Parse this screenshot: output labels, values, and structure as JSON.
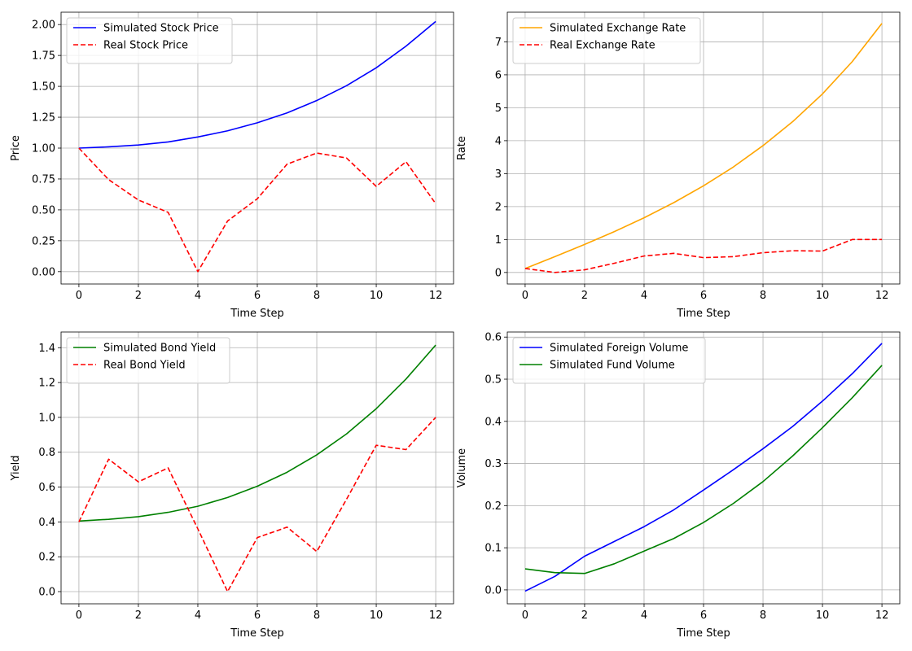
{
  "chart_data": [
    {
      "type": "line",
      "xlabel": "Time Step",
      "ylabel": "Price",
      "x": [
        0,
        1,
        2,
        3,
        4,
        5,
        6,
        7,
        8,
        9,
        10,
        11,
        12
      ],
      "xlim": [
        -0.6,
        12.6
      ],
      "ylim": [
        -0.1,
        2.1
      ],
      "xticks": [
        0,
        2,
        4,
        6,
        8,
        10,
        12
      ],
      "xtick_labels": [
        "0",
        "2",
        "4",
        "6",
        "8",
        "10",
        "12"
      ],
      "yticks": [
        0,
        0.25,
        0.5,
        0.75,
        1.0,
        1.25,
        1.5,
        1.75,
        2.0
      ],
      "ytick_labels": [
        "0.00",
        "0.25",
        "0.50",
        "0.75",
        "1.00",
        "1.25",
        "1.50",
        "1.75",
        "2.00"
      ],
      "grid": true,
      "legend_position": "upper-left",
      "series": [
        {
          "name": "Simulated Stock Price",
          "color": "#0000ff",
          "dash": "solid",
          "values": [
            1.0,
            1.01,
            1.025,
            1.05,
            1.09,
            1.14,
            1.205,
            1.285,
            1.385,
            1.505,
            1.65,
            1.825,
            2.025
          ]
        },
        {
          "name": "Real Stock Price",
          "color": "#ff0000",
          "dash": "dashed",
          "values": [
            1.0,
            0.745,
            0.58,
            0.48,
            0.0,
            0.41,
            0.59,
            0.87,
            0.96,
            0.92,
            0.69,
            0.89,
            0.55
          ]
        }
      ]
    },
    {
      "type": "line",
      "xlabel": "Time Step",
      "ylabel": "Rate",
      "x": [
        0,
        1,
        2,
        3,
        4,
        5,
        6,
        7,
        8,
        9,
        10,
        11,
        12
      ],
      "xlim": [
        -0.6,
        12.6
      ],
      "ylim": [
        -0.35,
        7.9
      ],
      "xticks": [
        0,
        2,
        4,
        6,
        8,
        10,
        12
      ],
      "xtick_labels": [
        "0",
        "2",
        "4",
        "6",
        "8",
        "10",
        "12"
      ],
      "yticks": [
        0,
        1,
        2,
        3,
        4,
        5,
        6,
        7
      ],
      "ytick_labels": [
        "0",
        "1",
        "2",
        "3",
        "4",
        "5",
        "6",
        "7"
      ],
      "grid": true,
      "legend_position": "upper-left",
      "series": [
        {
          "name": "Simulated Exchange Rate",
          "color": "#ffa500",
          "dash": "solid",
          "values": [
            0.12,
            0.48,
            0.85,
            1.24,
            1.66,
            2.12,
            2.63,
            3.2,
            3.85,
            4.58,
            5.42,
            6.4,
            7.56
          ]
        },
        {
          "name": "Real Exchange Rate",
          "color": "#ff0000",
          "dash": "dashed",
          "values": [
            0.12,
            0.0,
            0.08,
            0.28,
            0.5,
            0.58,
            0.45,
            0.48,
            0.6,
            0.66,
            0.65,
            1.0,
            1.0
          ]
        }
      ]
    },
    {
      "type": "line",
      "xlabel": "Time Step",
      "ylabel": "Yield",
      "x": [
        0,
        1,
        2,
        3,
        4,
        5,
        6,
        7,
        8,
        9,
        10,
        11,
        12
      ],
      "xlim": [
        -0.6,
        12.6
      ],
      "ylim": [
        -0.07,
        1.49
      ],
      "xticks": [
        0,
        2,
        4,
        6,
        8,
        10,
        12
      ],
      "xtick_labels": [
        "0",
        "2",
        "4",
        "6",
        "8",
        "10",
        "12"
      ],
      "yticks": [
        0,
        0.2,
        0.4,
        0.6,
        0.8,
        1.0,
        1.2,
        1.4
      ],
      "ytick_labels": [
        "0.0",
        "0.2",
        "0.4",
        "0.6",
        "0.8",
        "1.0",
        "1.2",
        "1.4"
      ],
      "grid": true,
      "legend_position": "upper-left",
      "series": [
        {
          "name": "Simulated Bond Yield",
          "color": "#008000",
          "dash": "solid",
          "values": [
            0.405,
            0.415,
            0.43,
            0.455,
            0.49,
            0.54,
            0.605,
            0.685,
            0.785,
            0.905,
            1.05,
            1.22,
            1.415
          ]
        },
        {
          "name": "Real Bond Yield",
          "color": "#ff0000",
          "dash": "dashed",
          "values": [
            0.4,
            0.76,
            0.63,
            0.71,
            0.36,
            0.0,
            0.31,
            0.37,
            0.23,
            0.53,
            0.84,
            0.815,
            1.0
          ]
        }
      ]
    },
    {
      "type": "line",
      "xlabel": "Time Step",
      "ylabel": "Volume",
      "x": [
        0,
        1,
        2,
        3,
        4,
        5,
        6,
        7,
        8,
        9,
        10,
        11,
        12
      ],
      "xlim": [
        -0.6,
        12.6
      ],
      "ylim": [
        -0.033,
        0.612
      ],
      "xticks": [
        0,
        2,
        4,
        6,
        8,
        10,
        12
      ],
      "xtick_labels": [
        "0",
        "2",
        "4",
        "6",
        "8",
        "10",
        "12"
      ],
      "yticks": [
        0,
        0.1,
        0.2,
        0.3,
        0.4,
        0.5,
        0.6
      ],
      "ytick_labels": [
        "0.0",
        "0.1",
        "0.2",
        "0.3",
        "0.4",
        "0.5",
        "0.6"
      ],
      "grid": true,
      "legend_position": "upper-left",
      "series": [
        {
          "name": "Simulated Foreign Volume",
          "color": "#0000ff",
          "dash": "solid",
          "values": [
            -0.003,
            0.032,
            0.08,
            0.115,
            0.15,
            0.19,
            0.237,
            0.285,
            0.335,
            0.388,
            0.448,
            0.513,
            0.585
          ]
        },
        {
          "name": "Simulated Fund Volume",
          "color": "#008000",
          "dash": "solid",
          "values": [
            0.05,
            0.041,
            0.039,
            0.062,
            0.092,
            0.122,
            0.16,
            0.205,
            0.257,
            0.318,
            0.385,
            0.456,
            0.533
          ]
        }
      ]
    }
  ]
}
